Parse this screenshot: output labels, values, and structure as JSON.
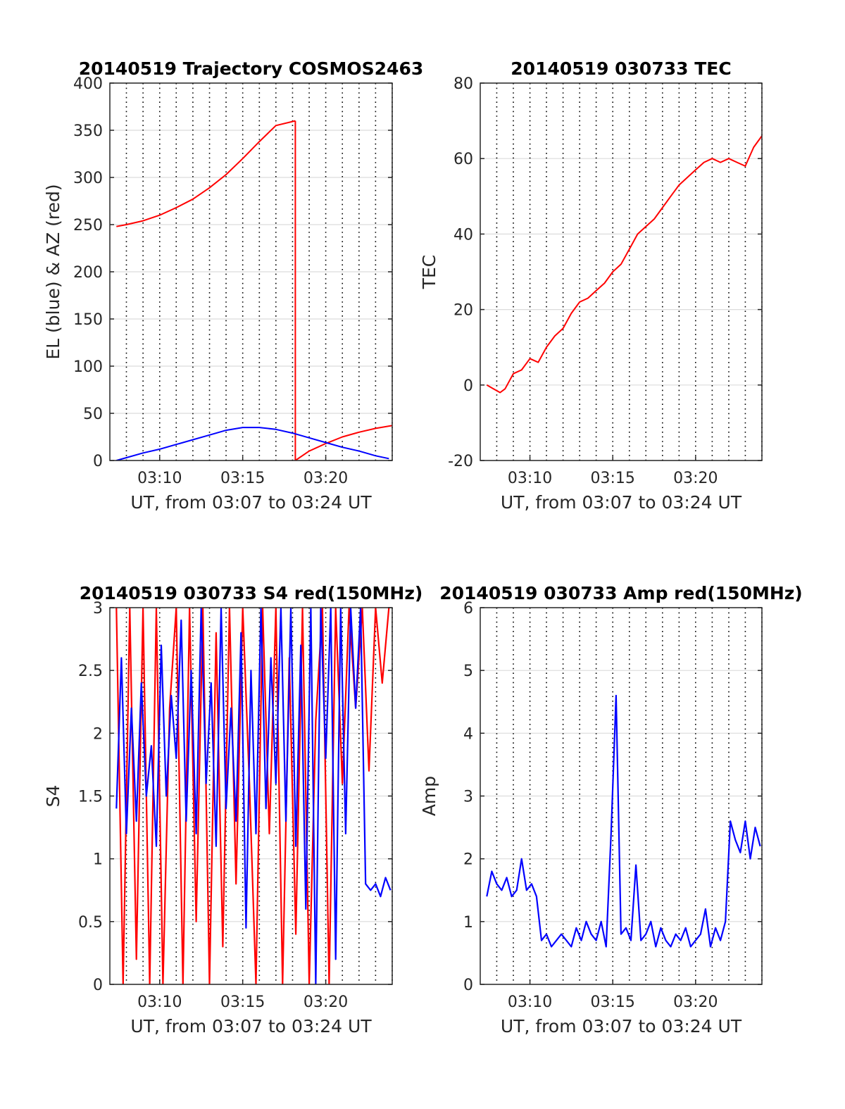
{
  "colors": {
    "red": "#ff0000",
    "blue": "#0000ff",
    "grid": "#dcdcdc",
    "axis": "#262626"
  },
  "x_ticks": [
    {
      "value": 3.1667,
      "label": "03:10"
    },
    {
      "value": 3.25,
      "label": "03:15"
    },
    {
      "value": 3.3333,
      "label": "03:20"
    }
  ],
  "x_grid_dotted": [
    3.1333,
    3.15,
    3.1667,
    3.1833,
    3.2,
    3.2167,
    3.2333,
    3.25,
    3.2667,
    3.2833,
    3.3,
    3.3167,
    3.3333,
    3.35,
    3.3667,
    3.3833,
    3.4
  ],
  "chart_data": [
    {
      "type": "line",
      "title": "20140519 Trajectory COSMOS2463",
      "xlabel": "UT, from 03:07 to 03:24 UT",
      "ylabel": "EL (blue) & AZ (red)",
      "xlim": [
        3.1167,
        3.4
      ],
      "ylim": [
        0,
        400
      ],
      "yticks": [
        0,
        50,
        100,
        150,
        200,
        250,
        300,
        350,
        400
      ],
      "grid": true,
      "series": [
        {
          "color": "#ff0000",
          "x": [
            3.1233,
            3.1333,
            3.15,
            3.1667,
            3.1833,
            3.2,
            3.2167,
            3.2333,
            3.25,
            3.2667,
            3.2833,
            3.3028
          ],
          "values": [
            248,
            250,
            254,
            260,
            268,
            277,
            289,
            303,
            320,
            338,
            355,
            360
          ]
        },
        {
          "color": "#ff0000",
          "x": [
            3.3028,
            3.3028,
            3.3167,
            3.3333,
            3.35,
            3.3667,
            3.3833,
            3.4
          ],
          "values": [
            360,
            0,
            10,
            18,
            25,
            30,
            34,
            37
          ]
        },
        {
          "color": "#0000ff",
          "x": [
            3.1233,
            3.1333,
            3.15,
            3.1667,
            3.1833,
            3.2,
            3.2167,
            3.2333,
            3.25,
            3.2667,
            3.2833,
            3.3,
            3.3167,
            3.3333,
            3.35,
            3.3667,
            3.3833,
            3.3967
          ],
          "values": [
            0,
            3,
            8,
            12,
            17,
            22,
            27,
            32,
            35,
            35,
            33,
            29,
            24,
            19,
            14,
            10,
            5,
            2
          ]
        }
      ]
    },
    {
      "type": "line",
      "title": "20140519 030733 TEC",
      "xlabel": "UT, from 03:07 to 03:24 UT",
      "ylabel": "TEC",
      "xlim": [
        3.1167,
        3.4
      ],
      "ylim": [
        -20,
        80
      ],
      "yticks": [
        -20,
        0,
        20,
        40,
        60,
        80
      ],
      "grid": true,
      "series": [
        {
          "color": "#ff0000",
          "x": [
            3.1233,
            3.13,
            3.1367,
            3.1417,
            3.15,
            3.1583,
            3.1667,
            3.175,
            3.1833,
            3.1917,
            3.2,
            3.2083,
            3.2167,
            3.225,
            3.2333,
            3.2417,
            3.25,
            3.2583,
            3.2667,
            3.275,
            3.2833,
            3.2917,
            3.3,
            3.3083,
            3.3167,
            3.325,
            3.3333,
            3.3417,
            3.35,
            3.3583,
            3.3667,
            3.375,
            3.3833,
            3.3917,
            3.4
          ],
          "values": [
            0,
            -1,
            -2,
            -1,
            3,
            4,
            7,
            6,
            10,
            13,
            15,
            19,
            22,
            23,
            25,
            27,
            30,
            32,
            36,
            40,
            42,
            44,
            47,
            50,
            53,
            55,
            57,
            59,
            60,
            59,
            60,
            59,
            58,
            63,
            66
          ]
        }
      ]
    },
    {
      "type": "line",
      "title": "20140519 030733 S4 red(150MHz)",
      "xlabel": "UT, from 03:07 to 03:24 UT",
      "ylabel": "S4",
      "xlim": [
        3.1167,
        3.4
      ],
      "ylim": [
        0,
        3
      ],
      "yticks": [
        0,
        0.5,
        1,
        1.5,
        2,
        2.5,
        3
      ],
      "grid": true,
      "series": [
        {
          "color": "#ff0000",
          "x": [
            3.1233,
            3.13,
            3.1367,
            3.1433,
            3.15,
            3.1567,
            3.1633,
            3.17,
            3.1767,
            3.1833,
            3.19,
            3.1967,
            3.2033,
            3.21,
            3.2167,
            3.2233,
            3.23,
            3.2367,
            3.2433,
            3.25,
            3.2567,
            3.2633,
            3.27,
            3.2767,
            3.2833,
            3.29,
            3.2967,
            3.3033,
            3.31,
            3.3167,
            3.3233,
            3.33,
            3.3367,
            3.3433,
            3.35,
            3.3567,
            3.3633,
            3.37,
            3.3767,
            3.3833,
            3.39,
            3.3967
          ],
          "values": [
            3,
            0,
            3,
            0.2,
            3,
            0,
            3,
            0,
            2.2,
            3,
            0,
            3,
            0.5,
            3,
            0,
            2.8,
            0.3,
            3,
            0.8,
            3,
            1.6,
            0,
            3,
            1.2,
            3,
            0,
            2.6,
            0.4,
            3,
            0,
            2.1,
            3,
            0,
            3,
            1.6,
            3,
            2.2,
            3,
            1.7,
            3,
            2.4,
            3
          ]
        },
        {
          "color": "#0000ff",
          "x": [
            3.1233,
            3.1283,
            3.1333,
            3.1383,
            3.1433,
            3.1483,
            3.1533,
            3.1583,
            3.1633,
            3.1683,
            3.1733,
            3.1783,
            3.1833,
            3.1883,
            3.1933,
            3.1983,
            3.2033,
            3.2083,
            3.2133,
            3.2183,
            3.2233,
            3.2283,
            3.2333,
            3.2383,
            3.2433,
            3.2483,
            3.2533,
            3.2583,
            3.2633,
            3.2683,
            3.2733,
            3.2783,
            3.2833,
            3.2883,
            3.2933,
            3.2983,
            3.3033,
            3.3083,
            3.3133,
            3.3183,
            3.3233,
            3.3283,
            3.3333,
            3.3383,
            3.3433,
            3.3483,
            3.3533,
            3.3583,
            3.3633,
            3.3683,
            3.3733,
            3.3783,
            3.3833,
            3.3883,
            3.3933,
            3.3983
          ],
          "values": [
            1.4,
            2.6,
            1.2,
            2.2,
            1.3,
            2.4,
            1.5,
            1.9,
            1.1,
            2.7,
            1.5,
            2.3,
            1.8,
            2.9,
            1.3,
            2.5,
            1.2,
            3,
            1.6,
            2.4,
            1.1,
            3,
            1.4,
            2.2,
            1.3,
            2.8,
            0.45,
            2.5,
            1.2,
            3,
            1.4,
            2.6,
            1.6,
            3,
            1.3,
            3,
            1.1,
            2.7,
            0.6,
            3,
            0,
            3,
            1.8,
            3,
            0.2,
            3,
            1.2,
            3,
            2.2,
            3,
            0.8,
            0.75,
            0.8,
            0.7,
            0.85,
            0.75
          ]
        }
      ]
    },
    {
      "type": "line",
      "title": "20140519 030733 Amp red(150MHz)",
      "xlabel": "UT, from 03:07 to 03:24 UT",
      "ylabel": "Amp",
      "xlim": [
        3.1167,
        3.4
      ],
      "ylim": [
        0,
        6
      ],
      "yticks": [
        0,
        1,
        2,
        3,
        4,
        5,
        6
      ],
      "grid": true,
      "series": [
        {
          "color": "#0000ff",
          "x": [
            3.1233,
            3.1283,
            3.1333,
            3.1383,
            3.1433,
            3.1483,
            3.1533,
            3.1583,
            3.1633,
            3.1683,
            3.1733,
            3.1783,
            3.1833,
            3.1883,
            3.1933,
            3.1983,
            3.2033,
            3.2083,
            3.2133,
            3.2183,
            3.2233,
            3.2283,
            3.2333,
            3.2383,
            3.2433,
            3.2483,
            3.2533,
            3.2583,
            3.2633,
            3.2683,
            3.2733,
            3.2783,
            3.2833,
            3.2883,
            3.2933,
            3.2983,
            3.3033,
            3.3083,
            3.3133,
            3.3183,
            3.3233,
            3.3283,
            3.3333,
            3.3383,
            3.3433,
            3.3483,
            3.3533,
            3.3583,
            3.3633,
            3.3683,
            3.3733,
            3.3783,
            3.3833,
            3.3883,
            3.3933,
            3.3983
          ],
          "values": [
            1.4,
            1.8,
            1.6,
            1.5,
            1.7,
            1.4,
            1.5,
            2.0,
            1.5,
            1.6,
            1.4,
            0.7,
            0.8,
            0.6,
            0.7,
            0.8,
            0.7,
            0.6,
            0.9,
            0.7,
            1.0,
            0.8,
            0.7,
            1.0,
            0.6,
            2.4,
            4.6,
            0.8,
            0.9,
            0.7,
            1.9,
            0.7,
            0.8,
            1.0,
            0.6,
            0.9,
            0.7,
            0.6,
            0.8,
            0.7,
            0.9,
            0.6,
            0.7,
            0.8,
            1.2,
            0.6,
            0.9,
            0.7,
            1.0,
            2.6,
            2.3,
            2.1,
            2.6,
            2.0,
            2.5,
            2.2
          ]
        }
      ]
    }
  ]
}
